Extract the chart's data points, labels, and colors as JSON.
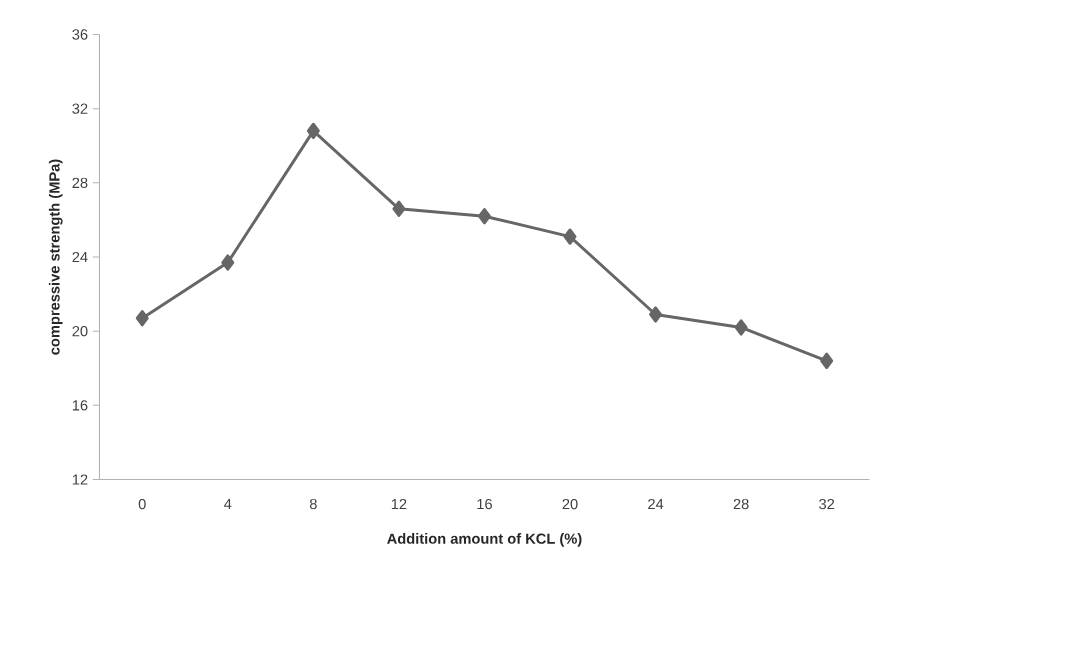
{
  "chart_data": {
    "type": "line",
    "xlabel": "Addition amount of KCL (%)",
    "ylabel": "compressive strength (MPa)",
    "categories": [
      "0",
      "4",
      "8",
      "12",
      "16",
      "20",
      "24",
      "28",
      "32"
    ],
    "series": [
      {
        "color": "#666666",
        "values": [
          20.7,
          23.7,
          30.8,
          26.6,
          26.2,
          25.1,
          20.9,
          20.2,
          18.4
        ]
      }
    ],
    "ylim": [
      12,
      36
    ],
    "yticks": [
      12,
      16,
      20,
      24,
      28,
      32,
      36
    ],
    "marker": "diamond",
    "line_style": "solid",
    "grid": false
  }
}
